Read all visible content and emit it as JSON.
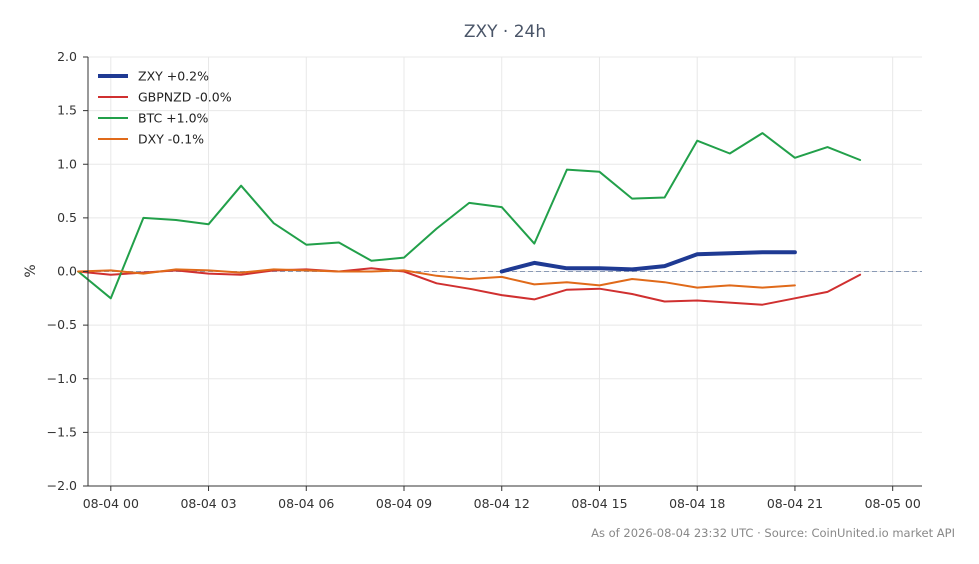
{
  "chart_data": {
    "type": "line",
    "title": "ZXY · 24h",
    "ylabel": "%",
    "xlabel": "",
    "ylim": [
      -2.0,
      2.0
    ],
    "yticks": [
      2.0,
      1.5,
      1.0,
      0.5,
      0.0,
      -0.5,
      -1.0,
      -1.5,
      -2.0
    ],
    "ytick_labels": [
      "2.0",
      "1.5",
      "1.0",
      "0.5",
      "0.0",
      "−0.5",
      "−1.0",
      "−1.5",
      "−2.0"
    ],
    "xlim": [
      -0.7,
      24.9
    ],
    "xticks": [
      0,
      3,
      6,
      9,
      12,
      15,
      18,
      21,
      24
    ],
    "xtick_labels": [
      "08-04 00",
      "08-04 03",
      "08-04 06",
      "08-04 09",
      "08-04 12",
      "08-04 15",
      "08-04 18",
      "08-04 21",
      "08-05 00"
    ],
    "zero_line": true,
    "grid": true,
    "legend_position": "top-left",
    "series": [
      {
        "name": "ZXY +0.2%",
        "color": "#1f3a93",
        "width": 4,
        "x": [
          12,
          13,
          14,
          15,
          16,
          17,
          18,
          19,
          20,
          21
        ],
        "y": [
          0.0,
          0.08,
          0.03,
          0.03,
          0.02,
          0.05,
          0.16,
          0.17,
          0.18,
          0.18
        ]
      },
      {
        "name": "GBPNZD -0.0%",
        "color": "#d03030",
        "width": 2,
        "x": [
          -1,
          0,
          1,
          2,
          3,
          4,
          5,
          6,
          7,
          8,
          9,
          10,
          11,
          12,
          13,
          14,
          15,
          16,
          17,
          18,
          19,
          20,
          21,
          22,
          23
        ],
        "y": [
          0.0,
          -0.03,
          -0.01,
          0.01,
          -0.02,
          -0.03,
          0.01,
          0.02,
          0.0,
          0.03,
          0.0,
          -0.11,
          -0.16,
          -0.22,
          -0.26,
          -0.17,
          -0.16,
          -0.21,
          -0.28,
          -0.27,
          -0.29,
          -0.31,
          -0.25,
          -0.19,
          -0.03
        ]
      },
      {
        "name": "BTC +1.0%",
        "color": "#22a04a",
        "width": 2,
        "x": [
          -1,
          0,
          1,
          2,
          3,
          4,
          5,
          6,
          7,
          8,
          9,
          10,
          11,
          12,
          13,
          14,
          15,
          16,
          17,
          18,
          19,
          20,
          21,
          22,
          23
        ],
        "y": [
          0.0,
          -0.25,
          0.5,
          0.48,
          0.44,
          0.8,
          0.45,
          0.25,
          0.27,
          0.1,
          0.13,
          0.4,
          0.64,
          0.6,
          0.26,
          0.95,
          0.93,
          0.68,
          0.69,
          1.22,
          1.1,
          1.29,
          1.06,
          1.16,
          1.04
        ]
      },
      {
        "name": "DXY -0.1%",
        "color": "#e06a1a",
        "width": 2,
        "x": [
          -1,
          0,
          1,
          2,
          3,
          4,
          5,
          6,
          7,
          8,
          9,
          10,
          11,
          12,
          13,
          14,
          15,
          16,
          17,
          18,
          19,
          20,
          21
        ],
        "y": [
          0.0,
          0.01,
          -0.02,
          0.02,
          0.01,
          -0.01,
          0.02,
          0.01,
          0.0,
          0.0,
          0.01,
          -0.04,
          -0.07,
          -0.05,
          -0.12,
          -0.1,
          -0.13,
          -0.07,
          -0.1,
          -0.15,
          -0.13,
          -0.15,
          -0.13
        ]
      }
    ]
  },
  "footer": "As of 2026-08-04 23:32 UTC · Source: CoinUnited.io market API"
}
